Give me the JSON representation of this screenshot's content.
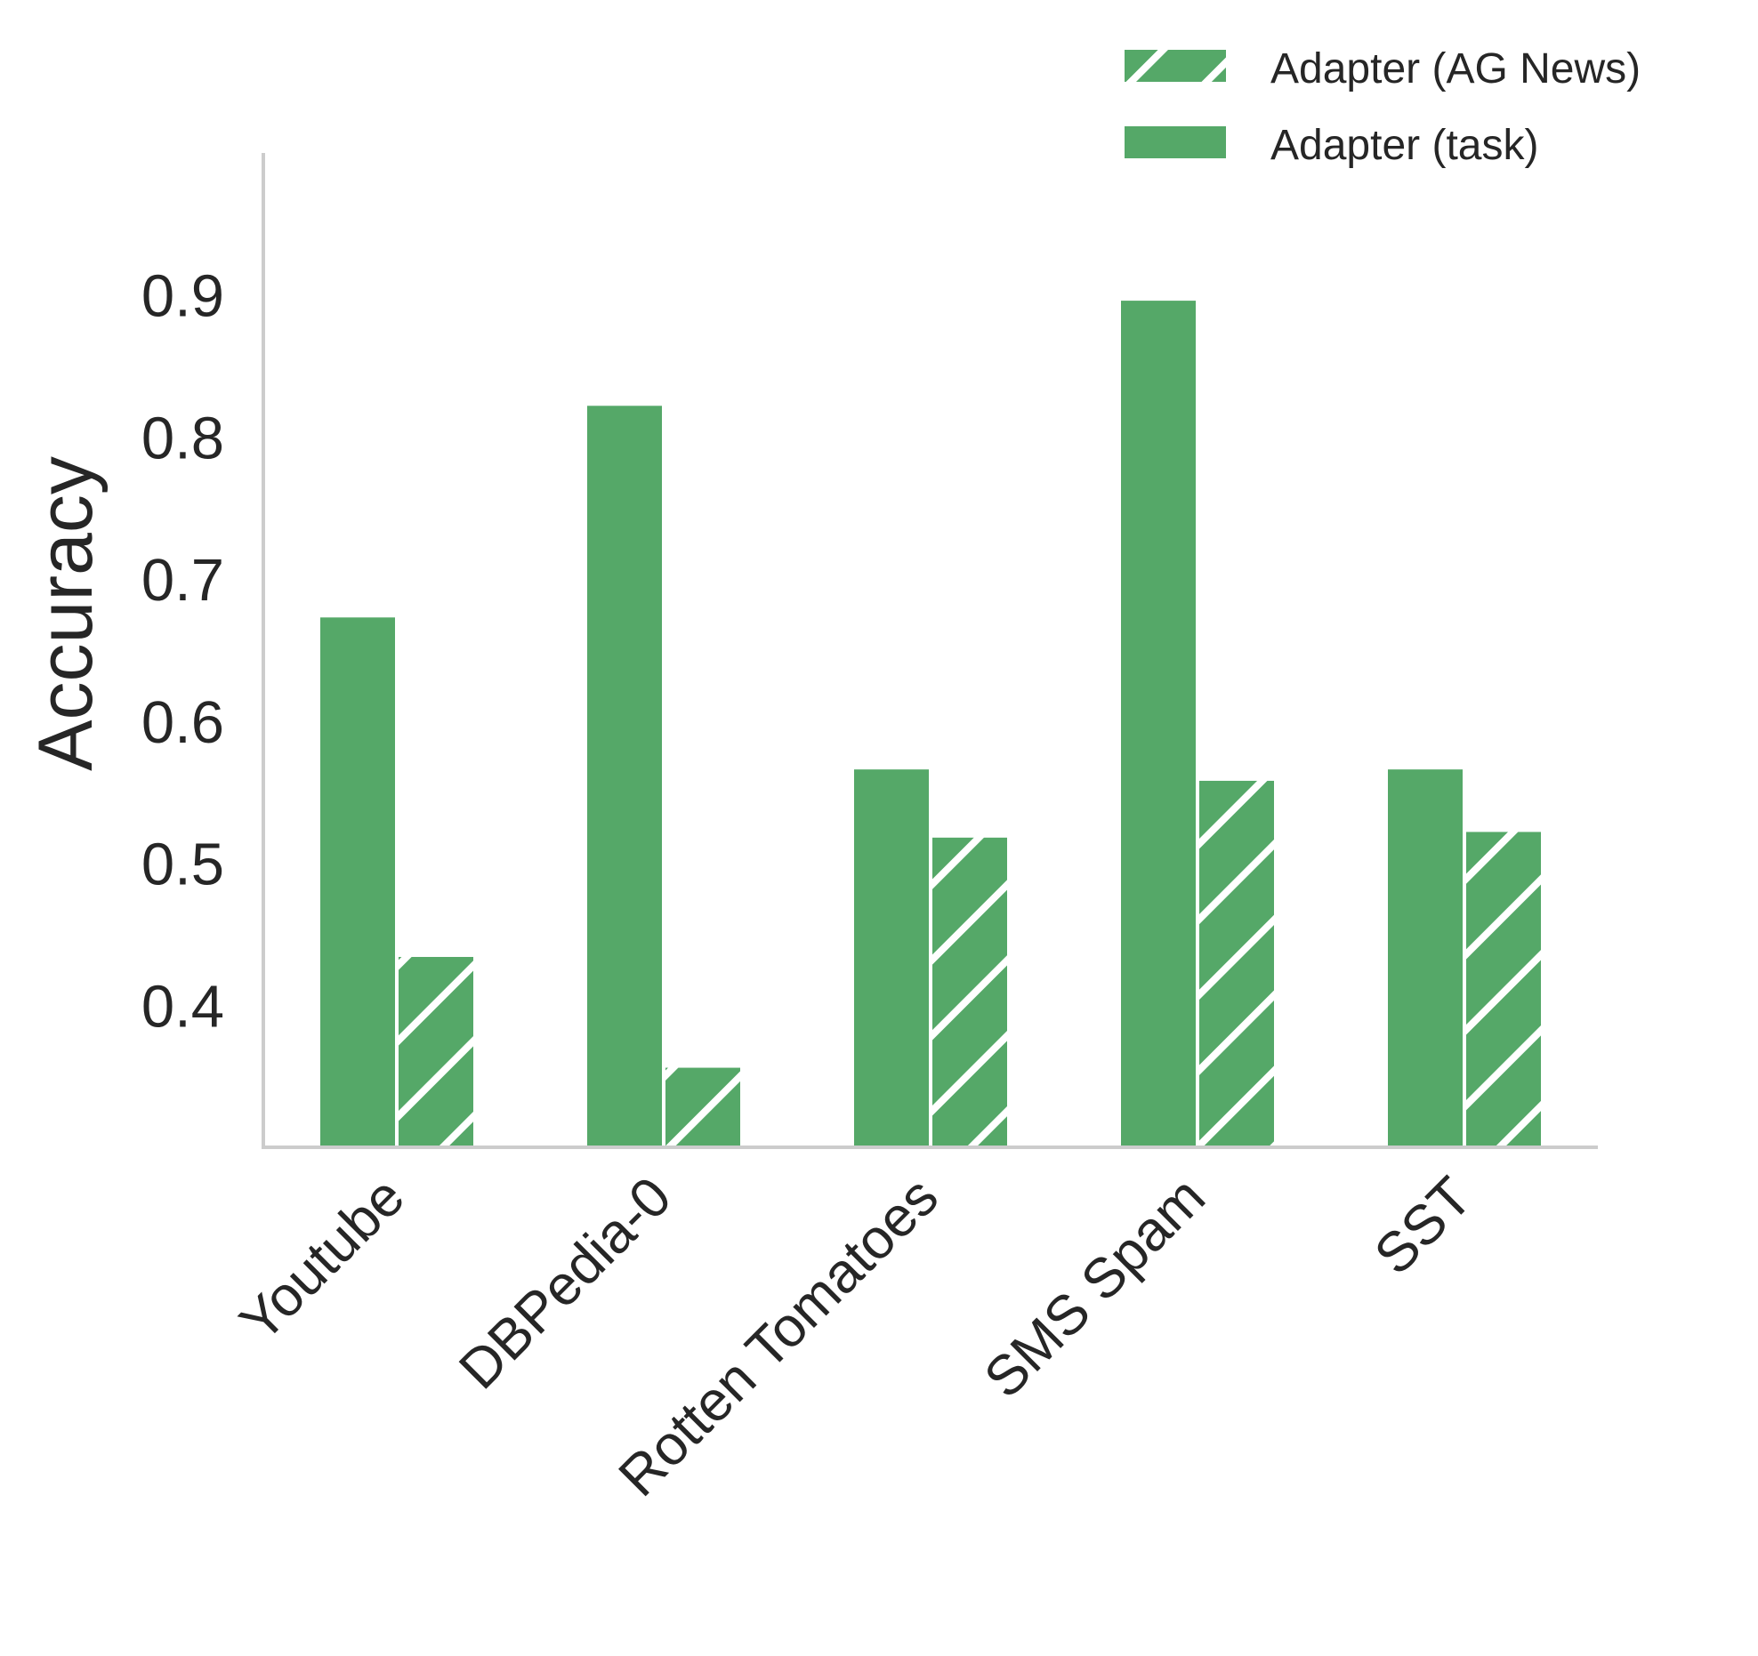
{
  "chart_data": {
    "type": "bar",
    "categories": [
      "Youtube",
      "DBPedia-0",
      "Rotten Tomatoes",
      "SMS Spam",
      "SST"
    ],
    "series": [
      {
        "name": "Adapter (task)",
        "values": [
          0.673,
          0.822,
          0.566,
          0.896,
          0.566
        ],
        "pattern": "solid"
      },
      {
        "name": "Adapter (AG News)",
        "values": [
          0.434,
          0.356,
          0.518,
          0.558,
          0.522
        ],
        "pattern": "hatched"
      }
    ],
    "xlabel": "",
    "ylabel": "Accuracy",
    "ylim": [
      0.3,
      1.0
    ],
    "yticks": [
      0.4,
      0.5,
      0.6,
      0.7,
      0.8,
      0.9
    ],
    "ytick_labels": [
      "0.4",
      "0.5",
      "0.6",
      "0.7",
      "0.8",
      "0.9"
    ],
    "legend": {
      "placement": "top-right",
      "entries": [
        {
          "label": "Adapter (AG News)",
          "pattern": "hatched"
        },
        {
          "label": "Adapter (task)",
          "pattern": "solid"
        }
      ]
    },
    "grid": false,
    "colors": {
      "bar": "#55a868",
      "axis": "#cccccc",
      "text": "#262626",
      "hatch": "#ffffff"
    }
  }
}
